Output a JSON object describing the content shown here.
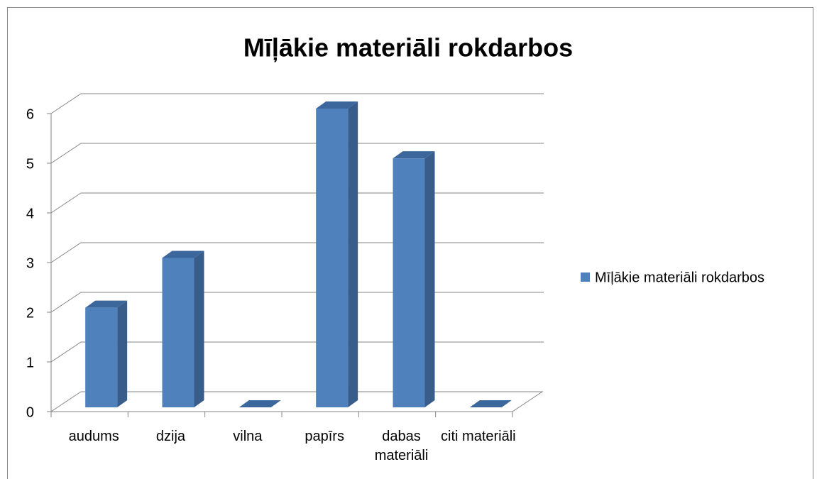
{
  "chart_data": {
    "type": "bar3d",
    "title": "Mīļākie materiāli rokdarbos",
    "categories": [
      "audums",
      "dzija",
      "vilna",
      "papīrs",
      "dabas materiāli",
      "citi materiāli"
    ],
    "series": [
      {
        "name": "Mīļākie materiāli rokdarbos",
        "color": "#4f81bd",
        "values": [
          2,
          3,
          0,
          6,
          5,
          0
        ]
      }
    ],
    "ylim": [
      0,
      6
    ],
    "yticks": [
      0,
      1,
      2,
      3,
      4,
      5,
      6
    ],
    "grid": true,
    "legend": "right"
  }
}
